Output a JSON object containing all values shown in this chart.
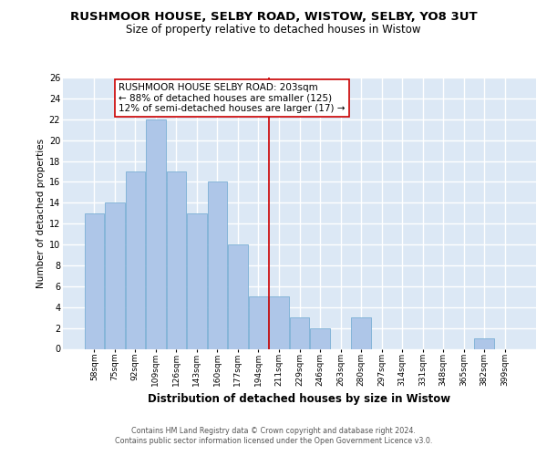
{
  "title": "RUSHMOOR HOUSE, SELBY ROAD, WISTOW, SELBY, YO8 3UT",
  "subtitle": "Size of property relative to detached houses in Wistow",
  "xlabel": "Distribution of detached houses by size in Wistow",
  "ylabel": "Number of detached properties",
  "bar_labels": [
    "58sqm",
    "75sqm",
    "92sqm",
    "109sqm",
    "126sqm",
    "143sqm",
    "160sqm",
    "177sqm",
    "194sqm",
    "211sqm",
    "229sqm",
    "246sqm",
    "263sqm",
    "280sqm",
    "297sqm",
    "314sqm",
    "331sqm",
    "348sqm",
    "365sqm",
    "382sqm",
    "399sqm"
  ],
  "bar_values": [
    13,
    14,
    17,
    22,
    17,
    13,
    16,
    10,
    5,
    5,
    3,
    2,
    0,
    3,
    0,
    0,
    0,
    0,
    0,
    1,
    0
  ],
  "bar_color": "#aec6e8",
  "bar_edge_color": "#7aafd4",
  "vline_x": 8.5,
  "vline_color": "#cc0000",
  "annotation_text": "RUSHMOOR HOUSE SELBY ROAD: 203sqm\n← 88% of detached houses are smaller (125)\n12% of semi-detached houses are larger (17) →",
  "annotation_box_color": "#ffffff",
  "annotation_box_edge_color": "#cc0000",
  "ylim": [
    0,
    26
  ],
  "yticks": [
    0,
    2,
    4,
    6,
    8,
    10,
    12,
    14,
    16,
    18,
    20,
    22,
    24,
    26
  ],
  "background_color": "#dce8f5",
  "grid_color": "#ffffff",
  "footer_text": "Contains HM Land Registry data © Crown copyright and database right 2024.\nContains public sector information licensed under the Open Government Licence v3.0.",
  "title_fontsize": 9.5,
  "subtitle_fontsize": 8.5,
  "xlabel_fontsize": 8.5,
  "ylabel_fontsize": 7.5,
  "annotation_fontsize": 7.5,
  "tick_fontsize": 6.5,
  "ytick_fontsize": 7.0
}
